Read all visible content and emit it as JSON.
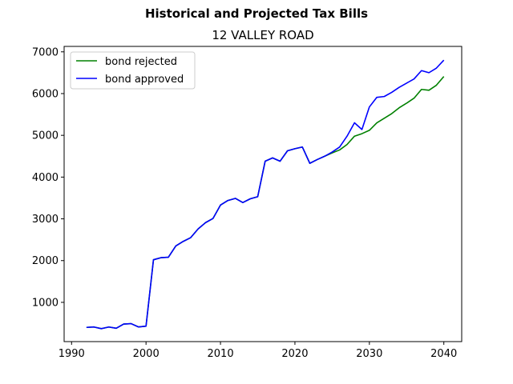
{
  "chart_data": {
    "type": "line",
    "title": "Historical and Projected Tax Bills",
    "subtitle": "12 VALLEY ROAD",
    "xlabel": "",
    "ylabel": "",
    "xlim": [
      1989,
      2042.4
    ],
    "ylim": [
      60,
      7130
    ],
    "x_ticks": [
      1990,
      2000,
      2010,
      2020,
      2030,
      2040
    ],
    "y_ticks": [
      1000,
      2000,
      3000,
      4000,
      5000,
      6000,
      7000
    ],
    "grid": false,
    "legend_position": "upper-left",
    "x": [
      1992,
      1993,
      1994,
      1995,
      1996,
      1997,
      1998,
      1999,
      2000,
      2001,
      2002,
      2003,
      2004,
      2005,
      2006,
      2007,
      2008,
      2009,
      2010,
      2011,
      2012,
      2013,
      2014,
      2015,
      2016,
      2017,
      2018,
      2019,
      2020,
      2021,
      2022,
      2023,
      2024,
      2025,
      2026,
      2027,
      2028,
      2029,
      2030,
      2031,
      2032,
      2033,
      2034,
      2035,
      2036,
      2037,
      2038,
      2039,
      2040
    ],
    "series": [
      {
        "name": "bond rejected",
        "color": "#008000",
        "values": [
          400,
          410,
          370,
          410,
          380,
          480,
          490,
          410,
          430,
          2020,
          2070,
          2080,
          2350,
          2460,
          2550,
          2760,
          2910,
          3010,
          3330,
          3440,
          3490,
          3390,
          3480,
          3530,
          4380,
          4460,
          4380,
          4630,
          4680,
          4720,
          4330,
          4420,
          4500,
          4580,
          4650,
          4780,
          4980,
          5040,
          5120,
          5300,
          5410,
          5520,
          5660,
          5770,
          5890,
          6100,
          6080,
          6200,
          6410
        ]
      },
      {
        "name": "bond approved",
        "color": "#0000ff",
        "values": [
          400,
          410,
          370,
          410,
          380,
          480,
          490,
          410,
          430,
          2020,
          2070,
          2080,
          2350,
          2460,
          2550,
          2760,
          2910,
          3010,
          3330,
          3440,
          3490,
          3390,
          3480,
          3530,
          4380,
          4460,
          4380,
          4630,
          4680,
          4720,
          4330,
          4420,
          4500,
          4600,
          4720,
          4980,
          5300,
          5140,
          5680,
          5910,
          5930,
          6030,
          6150,
          6250,
          6350,
          6550,
          6500,
          6610,
          6800
        ]
      }
    ]
  }
}
